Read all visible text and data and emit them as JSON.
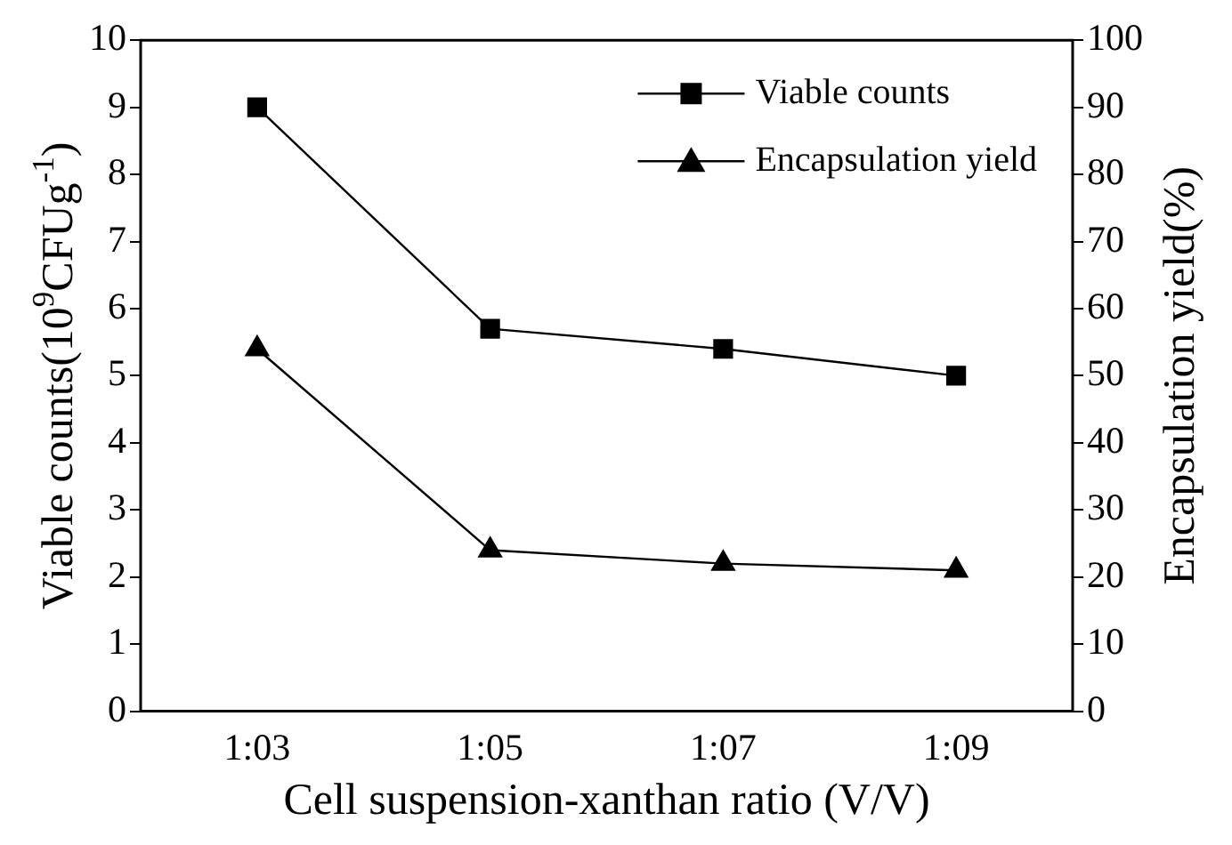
{
  "chart_data": {
    "type": "line",
    "xlabel": "Cell suspension-xanthan ratio (V/V)",
    "ylabel": "Viable counts(10$^{9}$CFUg$^{-1}$)",
    "y2label": "Encapsulation yield(%)",
    "categories": [
      "1:03",
      "1:05",
      "1:07",
      "1:09"
    ],
    "series": [
      {
        "name": "Viable counts",
        "color": "#000000",
        "marker": "square",
        "values": [
          9,
          5.7,
          5.4,
          5.0
        ]
      },
      {
        "name": "Encapsulation yield",
        "color": "#000000",
        "marker": "triangle",
        "axis": "y2",
        "values": [
          54,
          24,
          22,
          21
        ]
      }
    ],
    "ylim": [
      0,
      10
    ],
    "yticks": [
      0,
      1,
      2,
      3,
      4,
      5,
      6,
      7,
      8,
      9,
      10
    ],
    "y2lim": [
      0,
      100
    ],
    "y2ticks": [
      0,
      10,
      20,
      30,
      40,
      50,
      60,
      70,
      80,
      90,
      100
    ],
    "grid": false,
    "legend": "top right",
    "line_style": "solid"
  }
}
